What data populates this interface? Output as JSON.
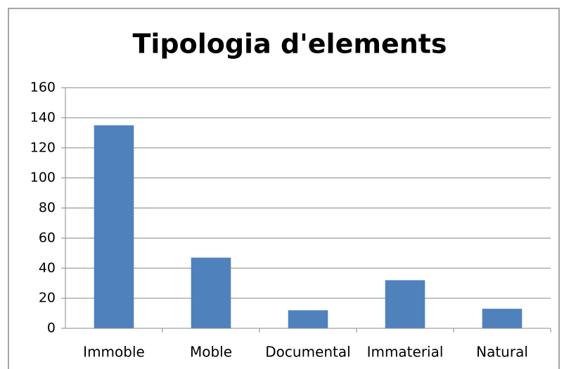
{
  "chart_data": {
    "type": "bar",
    "title": "Tipologia d'elements",
    "categories": [
      "Immoble",
      "Moble",
      "Documental",
      "Immaterial",
      "Natural"
    ],
    "values": [
      135,
      47,
      12,
      32,
      13
    ],
    "color": "#4f81bd",
    "ylim": [
      0,
      160
    ],
    "yticks": [
      0,
      20,
      40,
      60,
      80,
      100,
      120,
      140,
      160
    ],
    "grid": true
  }
}
